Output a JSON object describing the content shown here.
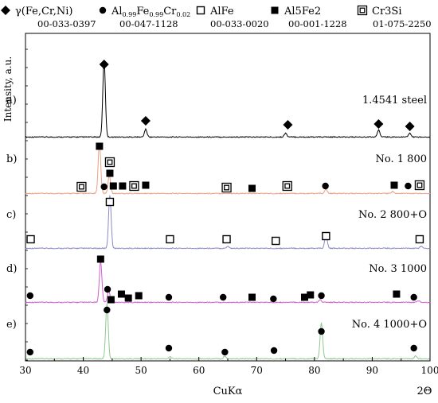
{
  "chart_data": {
    "type": "line",
    "xlabel": "CuKα",
    "xunit": "2Θ",
    "ylabel": "Intensity, a.u.",
    "xlim": [
      30,
      100
    ],
    "x_ticks": [
      30,
      40,
      50,
      60,
      70,
      80,
      90,
      100
    ],
    "grid": false,
    "legend_position": "top",
    "legend": [
      {
        "symbol": "diamond",
        "phase": "γ(Fe,Cr,Ni)",
        "pdf": "00-033-0397"
      },
      {
        "symbol": "circle",
        "phase": "Al0.99Fe0.99Cr0.02",
        "pdf": "00-047-1128"
      },
      {
        "symbol": "open-square",
        "phase": "AlFe",
        "pdf": "00-033-0020"
      },
      {
        "symbol": "filled-square",
        "phase": "Al5Fe2",
        "pdf": "00-001-1228"
      },
      {
        "symbol": "double-square",
        "phase": "Cr3Si",
        "pdf": "01-075-2250"
      }
    ],
    "series": [
      {
        "letter": "a)",
        "name": "1.4541 steel",
        "color": "#000000",
        "peaks": [
          [
            43.6,
            1.0
          ],
          [
            50.8,
            0.1
          ],
          [
            75.0,
            0.05
          ],
          [
            91.1,
            0.09
          ],
          [
            96.5,
            0.05
          ]
        ],
        "markers": [
          {
            "x": 43.6,
            "s": "diamond"
          },
          {
            "x": 50.8,
            "s": "diamond"
          },
          {
            "x": 75.4,
            "s": "diamond"
          },
          {
            "x": 91.1,
            "s": "diamond"
          },
          {
            "x": 96.5,
            "s": "diamond"
          }
        ]
      },
      {
        "letter": "b)",
        "name": "No. 1 800",
        "color": "#e8a080",
        "peaks": [
          [
            42.8,
            1.0
          ],
          [
            44.5,
            0.35
          ],
          [
            82.0,
            0.08
          ],
          [
            93.5,
            0.04
          ]
        ],
        "markers": [
          {
            "x": 42.8,
            "s": "filled-square"
          },
          {
            "x": 44.6,
            "s": "double-square"
          },
          {
            "x": 44.6,
            "s": "filled-square"
          },
          {
            "x": 39.7,
            "s": "double-square"
          },
          {
            "x": 43.6,
            "s": "circle"
          },
          {
            "x": 45.2,
            "s": "filled-square"
          },
          {
            "x": 46.8,
            "s": "filled-square"
          },
          {
            "x": 48.8,
            "s": "double-square"
          },
          {
            "x": 50.8,
            "s": "filled-square"
          },
          {
            "x": 64.8,
            "s": "double-square"
          },
          {
            "x": 69.2,
            "s": "filled-square"
          },
          {
            "x": 75.3,
            "s": "double-square"
          },
          {
            "x": 81.9,
            "s": "circle"
          },
          {
            "x": 93.8,
            "s": "filled-square"
          },
          {
            "x": 96.2,
            "s": "circle"
          },
          {
            "x": 98.2,
            "s": "double-square"
          }
        ]
      },
      {
        "letter": "c)",
        "name": "No. 2 800+O",
        "color": "#8888c8",
        "peaks": [
          [
            44.6,
            1.0
          ],
          [
            82.0,
            0.25
          ],
          [
            98.5,
            0.04
          ],
          [
            65.0,
            0.04
          ]
        ],
        "markers": [
          {
            "x": 44.6,
            "s": "open-square"
          },
          {
            "x": 30.9,
            "s": "open-square"
          },
          {
            "x": 55.0,
            "s": "open-square"
          },
          {
            "x": 64.8,
            "s": "open-square"
          },
          {
            "x": 73.3,
            "s": "open-square"
          },
          {
            "x": 82.0,
            "s": "open-square"
          },
          {
            "x": 98.2,
            "s": "open-square"
          }
        ]
      },
      {
        "letter": "d)",
        "name": "No. 3 1000",
        "color": "#d060d0",
        "peaks": [
          [
            43.0,
            1.0
          ],
          [
            44.4,
            0.3
          ],
          [
            81.0,
            0.06
          ],
          [
            98.0,
            0.04
          ]
        ],
        "markers": [
          {
            "x": 43.0,
            "s": "filled-square"
          },
          {
            "x": 30.8,
            "s": "circle"
          },
          {
            "x": 44.2,
            "s": "circle"
          },
          {
            "x": 44.8,
            "s": "filled-square"
          },
          {
            "x": 46.6,
            "s": "filled-square"
          },
          {
            "x": 47.8,
            "s": "filled-square"
          },
          {
            "x": 49.6,
            "s": "filled-square"
          },
          {
            "x": 54.8,
            "s": "circle"
          },
          {
            "x": 64.2,
            "s": "circle"
          },
          {
            "x": 69.2,
            "s": "filled-square"
          },
          {
            "x": 72.9,
            "s": "circle"
          },
          {
            "x": 78.3,
            "s": "filled-square"
          },
          {
            "x": 79.3,
            "s": "filled-square"
          },
          {
            "x": 81.2,
            "s": "circle"
          },
          {
            "x": 94.2,
            "s": "filled-square"
          },
          {
            "x": 97.2,
            "s": "circle"
          }
        ]
      },
      {
        "letter": "e)",
        "name": "No. 4 1000+O",
        "color": "#90c890",
        "peaks": [
          [
            44.1,
            1.0
          ],
          [
            81.2,
            0.65
          ],
          [
            64.5,
            0.05
          ],
          [
            55.0,
            0.04
          ],
          [
            97.5,
            0.05
          ]
        ],
        "markers": [
          {
            "x": 44.1,
            "s": "circle"
          },
          {
            "x": 30.8,
            "s": "circle"
          },
          {
            "x": 54.8,
            "s": "circle"
          },
          {
            "x": 64.5,
            "s": "circle"
          },
          {
            "x": 73.0,
            "s": "circle"
          },
          {
            "x": 81.2,
            "s": "circle"
          },
          {
            "x": 97.2,
            "s": "circle"
          }
        ]
      }
    ]
  }
}
